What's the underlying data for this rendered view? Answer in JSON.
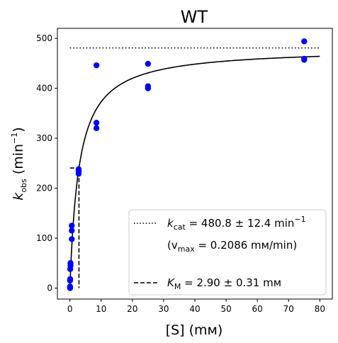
{
  "chart_data": {
    "type": "scatter",
    "title": "WT",
    "xlabel": "[S] (mᴍ)",
    "ylabel": "k_obs (min⁻¹)",
    "ylabel_parts": {
      "main": "k",
      "sub": "obs",
      "unit_open": " (min",
      "sup": "−1",
      "unit_close": ")"
    },
    "xlim": [
      -4,
      84
    ],
    "ylim": [
      -22,
      520
    ],
    "xticks": [
      0,
      10,
      20,
      30,
      40,
      50,
      60,
      70,
      80
    ],
    "yticks": [
      0,
      100,
      200,
      300,
      400,
      500
    ],
    "grid": false,
    "colors": {
      "points": "#0000ff",
      "fit": "#000000",
      "kcat_line": "#000000",
      "km_line": "#000000"
    },
    "series": [
      {
        "type": "scatter",
        "x": [
          0.05,
          0.05,
          0.05,
          0.1,
          0.1,
          0.2,
          0.2,
          0.6,
          0.6,
          0.6,
          2.8,
          2.8,
          2.8,
          8.5,
          8.5,
          8.5,
          25,
          25,
          25,
          75,
          75,
          75
        ],
        "y": [
          0,
          3,
          15,
          18,
          38,
          45,
          50,
          98,
          115,
          125,
          229,
          234,
          238,
          320,
          331,
          446,
          400,
          404,
          449,
          457,
          459,
          494
        ]
      },
      {
        "type": "line",
        "kind": "michaelis-menten-fit",
        "kcat": 480.8,
        "km": 2.9,
        "x_range": [
          0.05,
          80
        ]
      },
      {
        "type": "hline",
        "kind": "kcat",
        "y": 480.8,
        "x_range": [
          0,
          80
        ]
      },
      {
        "type": "km-marker",
        "kind": "KM",
        "x": 2.9,
        "y": 240.4,
        "x_start": 0
      }
    ],
    "legend": {
      "placement": "lower-right",
      "entries": [
        {
          "style": "dotted",
          "parts": {
            "main": "k",
            "sub": "cat",
            "rest": " = 480.8 ± 12.4 min",
            "sup": "−1"
          }
        },
        {
          "style": "none",
          "parts": {
            "open": "(v",
            "sub": "max",
            "rest": " = 0.2086 mᴍ/min)"
          }
        },
        {
          "style": "dashed",
          "parts": {
            "main": "K",
            "sub": "M",
            "rest": " = 2.90 ± 0.31 mᴍ"
          }
        }
      ]
    }
  }
}
